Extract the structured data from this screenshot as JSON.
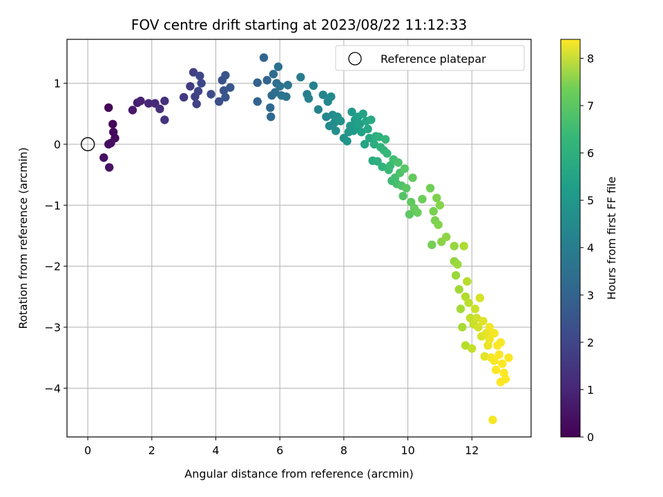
{
  "chart_data": {
    "type": "scatter",
    "title": "FOV centre drift starting at 2023/08/22 11:12:33",
    "xlabel": "Angular distance from reference (arcmin)",
    "ylabel": "Rotation from reference (arcmin)",
    "xlim": [
      -0.65,
      13.85
    ],
    "ylim": [
      -4.8,
      1.72
    ],
    "xticks": [
      0,
      2,
      4,
      6,
      8,
      10,
      12
    ],
    "yticks": [
      1,
      0,
      -1,
      -2,
      -3,
      -4
    ],
    "grid": true,
    "legend": {
      "placement": "top-right",
      "entries": [
        "Reference platepar"
      ]
    },
    "reference_point": {
      "x": 0,
      "y": 0
    },
    "colorbar": {
      "label": "Hours from first FF file",
      "min": 0,
      "max": 8.4,
      "ticks": [
        0,
        1,
        2,
        3,
        4,
        5,
        6,
        7,
        8
      ],
      "colormap": "viridis"
    },
    "series": [
      {
        "points": [
          [
            0.65,
            0.6,
            0.1
          ],
          [
            0.78,
            0.33,
            0.15
          ],
          [
            0.8,
            0.2,
            0.2
          ],
          [
            0.85,
            0.1,
            0.25
          ],
          [
            0.72,
            0.02,
            0.3
          ],
          [
            0.65,
            0.0,
            0.32
          ],
          [
            0.5,
            -0.22,
            0.35
          ],
          [
            0.67,
            -0.38,
            0.4
          ],
          [
            1.4,
            0.56,
            0.6
          ],
          [
            1.55,
            0.68,
            0.7
          ],
          [
            1.65,
            0.71,
            0.8
          ],
          [
            1.9,
            0.67,
            0.9
          ],
          [
            2.1,
            0.67,
            1.0
          ],
          [
            2.25,
            0.58,
            1.1
          ],
          [
            2.4,
            0.71,
            1.2
          ],
          [
            2.4,
            0.4,
            1.25
          ],
          [
            3.0,
            0.77,
            1.4
          ],
          [
            3.2,
            0.95,
            1.5
          ],
          [
            3.3,
            1.18,
            1.6
          ],
          [
            3.35,
            0.78,
            1.65
          ],
          [
            3.4,
            0.66,
            1.7
          ],
          [
            3.45,
            0.87,
            1.75
          ],
          [
            3.5,
            1.12,
            1.8
          ],
          [
            3.55,
            1.0,
            1.85
          ],
          [
            3.85,
            0.82,
            1.95
          ],
          [
            4.1,
            0.7,
            2.05
          ],
          [
            4.2,
            1.05,
            2.1
          ],
          [
            4.25,
            0.88,
            2.15
          ],
          [
            4.3,
            1.13,
            2.2
          ],
          [
            4.3,
            0.77,
            2.25
          ],
          [
            4.45,
            0.93,
            2.3
          ],
          [
            5.3,
            1.01,
            2.6
          ],
          [
            5.3,
            0.7,
            2.65
          ],
          [
            5.5,
            1.42,
            2.7
          ],
          [
            5.6,
            1.05,
            2.75
          ],
          [
            5.7,
            0.6,
            2.8
          ],
          [
            5.72,
            0.45,
            2.85
          ],
          [
            5.75,
            0.8,
            2.9
          ],
          [
            5.8,
            1.15,
            2.95
          ],
          [
            5.85,
            0.85,
            3.0
          ],
          [
            5.9,
            1.0,
            3.05
          ],
          [
            5.95,
            1.27,
            3.1
          ],
          [
            6.0,
            0.95,
            3.15
          ],
          [
            6.05,
            0.8,
            3.2
          ],
          [
            6.2,
            0.78,
            3.25
          ],
          [
            6.25,
            0.97,
            3.3
          ],
          [
            6.65,
            1.1,
            3.5
          ],
          [
            6.85,
            0.82,
            3.6
          ],
          [
            6.9,
            0.75,
            3.65
          ],
          [
            7.05,
            0.96,
            3.7
          ],
          [
            7.2,
            0.57,
            3.75
          ],
          [
            7.35,
            0.81,
            3.8
          ],
          [
            7.45,
            0.45,
            3.85
          ],
          [
            7.5,
            0.7,
            3.9
          ],
          [
            7.55,
            0.3,
            3.95
          ],
          [
            7.6,
            0.78,
            4.0
          ],
          [
            7.65,
            0.48,
            4.05
          ],
          [
            7.7,
            0.35,
            4.1
          ],
          [
            7.75,
            0.22,
            4.15
          ],
          [
            7.8,
            0.45,
            4.2
          ],
          [
            7.9,
            0.38,
            4.25
          ],
          [
            8.0,
            0.1,
            4.3
          ],
          [
            8.1,
            0.05,
            4.35
          ],
          [
            8.15,
            0.2,
            4.4
          ],
          [
            8.2,
            0.3,
            4.45
          ],
          [
            8.25,
            0.53,
            4.5
          ],
          [
            8.3,
            0.22,
            4.55
          ],
          [
            8.35,
            0.4,
            4.6
          ],
          [
            8.4,
            0.3,
            4.65
          ],
          [
            8.45,
            0.45,
            4.7
          ],
          [
            8.5,
            0.33,
            4.75
          ],
          [
            8.55,
            0.2,
            4.8
          ],
          [
            8.6,
            0.5,
            4.85
          ],
          [
            8.65,
            0.0,
            4.9
          ],
          [
            8.7,
            0.38,
            4.95
          ],
          [
            8.75,
            0.25,
            5.0
          ],
          [
            8.8,
            0.1,
            5.05
          ],
          [
            8.85,
            0.4,
            5.1
          ],
          [
            8.9,
            -0.27,
            5.15
          ],
          [
            8.95,
            0.0,
            5.2
          ],
          [
            9.0,
            0.13,
            5.25
          ],
          [
            9.05,
            -0.28,
            5.3
          ],
          [
            9.1,
            0.12,
            5.35
          ],
          [
            9.15,
            -0.05,
            5.4
          ],
          [
            9.2,
            -0.37,
            5.45
          ],
          [
            9.25,
            -0.1,
            5.5
          ],
          [
            9.3,
            0.08,
            5.55
          ],
          [
            9.35,
            -0.15,
            5.6
          ],
          [
            9.4,
            -0.42,
            5.65
          ],
          [
            9.45,
            -0.35,
            5.7
          ],
          [
            9.5,
            -0.6,
            5.75
          ],
          [
            9.55,
            -0.25,
            5.8
          ],
          [
            9.6,
            -0.55,
            5.85
          ],
          [
            9.65,
            -0.65,
            5.9
          ],
          [
            9.7,
            -0.3,
            5.95
          ],
          [
            9.75,
            -0.47,
            6.0
          ],
          [
            9.8,
            -0.68,
            6.05
          ],
          [
            9.85,
            -0.85,
            6.1
          ],
          [
            9.9,
            -0.4,
            6.15
          ],
          [
            9.95,
            -0.72,
            6.2
          ],
          [
            10.05,
            -1.15,
            6.25
          ],
          [
            10.1,
            -0.95,
            6.3
          ],
          [
            10.15,
            -0.55,
            6.35
          ],
          [
            10.2,
            -1.05,
            6.4
          ],
          [
            10.3,
            -1.12,
            6.45
          ],
          [
            10.45,
            -0.9,
            6.5
          ],
          [
            10.7,
            -0.72,
            6.55
          ],
          [
            10.75,
            -1.65,
            6.6
          ],
          [
            10.8,
            -1.1,
            6.65
          ],
          [
            10.85,
            -1.25,
            6.7
          ],
          [
            10.9,
            -0.88,
            6.75
          ],
          [
            10.95,
            -1.32,
            6.8
          ],
          [
            11.0,
            -1.0,
            6.85
          ],
          [
            11.05,
            -1.6,
            6.9
          ],
          [
            11.2,
            -1.52,
            6.95
          ],
          [
            11.45,
            -1.92,
            7.0
          ],
          [
            11.45,
            -1.67,
            7.05
          ],
          [
            11.5,
            -2.15,
            7.1
          ],
          [
            11.55,
            -1.97,
            7.15
          ],
          [
            11.6,
            -2.38,
            7.2
          ],
          [
            11.65,
            -2.7,
            7.25
          ],
          [
            11.7,
            -3.0,
            7.3
          ],
          [
            11.75,
            -1.67,
            7.35
          ],
          [
            11.8,
            -2.5,
            7.4
          ],
          [
            11.8,
            -3.3,
            7.45
          ],
          [
            11.85,
            -2.25,
            7.5
          ],
          [
            11.9,
            -2.6,
            7.55
          ],
          [
            11.95,
            -2.85,
            7.6
          ],
          [
            12.0,
            -3.35,
            7.65
          ],
          [
            12.05,
            -2.95,
            7.7
          ],
          [
            12.1,
            -2.7,
            7.75
          ],
          [
            12.15,
            -2.85,
            7.8
          ],
          [
            12.2,
            -3.0,
            7.85
          ],
          [
            12.25,
            -2.52,
            7.9
          ],
          [
            12.3,
            -3.15,
            7.95
          ],
          [
            12.35,
            -2.9,
            8.0
          ],
          [
            12.4,
            -3.48,
            8.05
          ],
          [
            12.45,
            -3.1,
            8.1
          ],
          [
            12.5,
            -3.3,
            8.15
          ],
          [
            12.55,
            -3.2,
            8.2
          ],
          [
            12.6,
            -3.5,
            8.25
          ],
          [
            12.65,
            -4.52,
            8.3
          ],
          [
            12.7,
            -3.55,
            8.35
          ],
          [
            12.75,
            -3.7,
            8.4
          ],
          [
            12.8,
            -3.3,
            8.4
          ],
          [
            12.85,
            -3.45,
            8.4
          ],
          [
            12.9,
            -3.9,
            8.4
          ],
          [
            12.95,
            -3.6,
            8.4
          ],
          [
            13.0,
            -3.75,
            8.4
          ],
          [
            13.05,
            -3.85,
            8.4
          ],
          [
            13.15,
            -3.5,
            8.4
          ],
          [
            12.9,
            -3.25,
            8.35
          ],
          [
            12.7,
            -3.1,
            8.3
          ],
          [
            12.55,
            -3.0,
            8.25
          ]
        ]
      }
    ]
  }
}
